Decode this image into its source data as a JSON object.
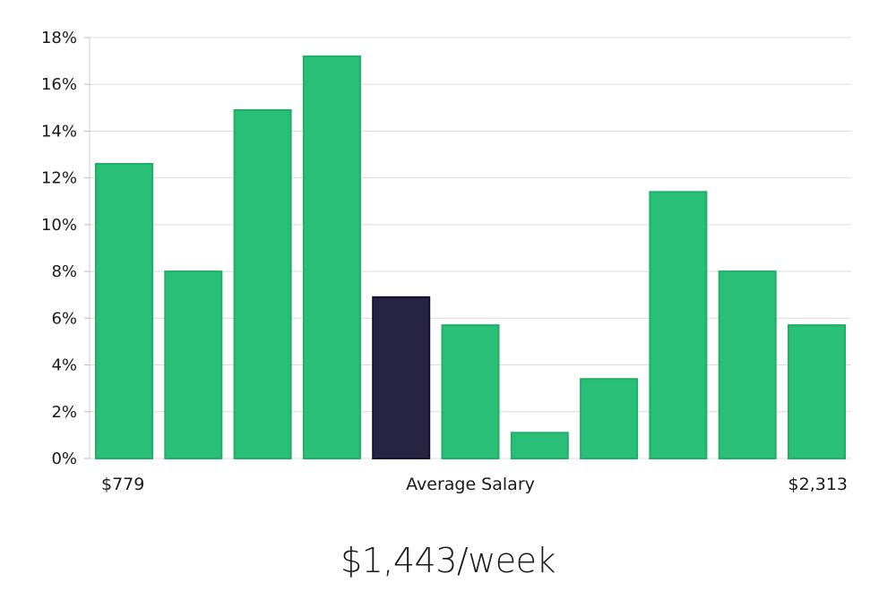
{
  "chart_data": {
    "type": "bar",
    "values": [
      12.6,
      8.0,
      14.9,
      17.2,
      6.9,
      5.7,
      1.1,
      3.4,
      11.4,
      8.0,
      5.7
    ],
    "highlight_index": 4,
    "ylim": [
      0,
      18
    ],
    "y_ticks": [
      {
        "value": 0,
        "label": "0%"
      },
      {
        "value": 2,
        "label": "2%"
      },
      {
        "value": 4,
        "label": "4%"
      },
      {
        "value": 6,
        "label": "6%"
      },
      {
        "value": 8,
        "label": "8%"
      },
      {
        "value": 10,
        "label": "10%"
      },
      {
        "value": 12,
        "label": "12%"
      },
      {
        "value": 14,
        "label": "14%"
      },
      {
        "value": 16,
        "label": "16%"
      },
      {
        "value": 18,
        "label": "18%"
      }
    ],
    "x_labels": {
      "min": "$779",
      "center": "Average Salary",
      "max": "$2,313"
    },
    "grid": true,
    "colors": {
      "bar": "#2abf76",
      "bar_edge": "#1fae68",
      "highlight": "#272443",
      "grid": "#dcdcdc"
    }
  },
  "headline": "$1,443/week"
}
